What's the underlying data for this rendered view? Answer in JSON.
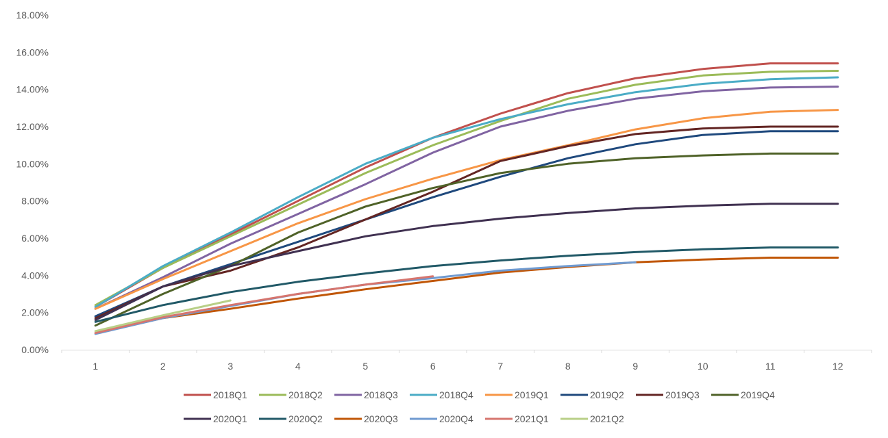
{
  "chart_data": {
    "type": "line",
    "title": "",
    "xlabel": "",
    "ylabel": "",
    "x": [
      1,
      2,
      3,
      4,
      5,
      6,
      7,
      8,
      9,
      10,
      11,
      12
    ],
    "x_tick_labels": [
      "1",
      "2",
      "3",
      "4",
      "5",
      "6",
      "7",
      "8",
      "9",
      "10",
      "11",
      "12"
    ],
    "ylim": [
      0,
      18
    ],
    "y_ticks": [
      0,
      2,
      4,
      6,
      8,
      10,
      12,
      14,
      16,
      18
    ],
    "y_tick_labels": [
      "0.00%",
      "2.00%",
      "4.00%",
      "6.00%",
      "8.00%",
      "10.00%",
      "12.00%",
      "14.00%",
      "16.00%",
      "18.00%"
    ],
    "y_unit": "%",
    "grid": "off",
    "legend_position": "bottom",
    "series": [
      {
        "name": "2018Q1",
        "color": "#C0504D",
        "values": [
          2.3,
          4.4,
          6.2,
          8.0,
          9.8,
          11.4,
          12.7,
          13.8,
          14.6,
          15.1,
          15.4,
          15.4
        ]
      },
      {
        "name": "2018Q2",
        "color": "#9BBB59",
        "values": [
          2.4,
          4.4,
          6.1,
          7.8,
          9.5,
          11.0,
          12.3,
          13.5,
          14.25,
          14.75,
          14.95,
          15.0
        ]
      },
      {
        "name": "2018Q3",
        "color": "#8064A2",
        "values": [
          2.2,
          3.9,
          5.7,
          7.3,
          8.9,
          10.6,
          12.0,
          12.85,
          13.5,
          13.9,
          14.1,
          14.15
        ]
      },
      {
        "name": "2018Q4",
        "color": "#4BACC6",
        "values": [
          2.3,
          4.5,
          6.3,
          8.2,
          10.0,
          11.4,
          12.4,
          13.2,
          13.85,
          14.3,
          14.55,
          14.65
        ]
      },
      {
        "name": "2019Q1",
        "color": "#F79646",
        "values": [
          2.2,
          3.8,
          5.3,
          6.8,
          8.1,
          9.2,
          10.2,
          11.0,
          11.85,
          12.45,
          12.8,
          12.9
        ]
      },
      {
        "name": "2019Q2",
        "color": "#1F497D",
        "values": [
          1.8,
          3.4,
          4.6,
          5.8,
          7.0,
          8.2,
          9.3,
          10.3,
          11.05,
          11.55,
          11.75,
          11.75
        ]
      },
      {
        "name": "2019Q3",
        "color": "#632523",
        "values": [
          1.7,
          3.4,
          4.25,
          5.5,
          7.0,
          8.5,
          10.15,
          10.95,
          11.6,
          11.9,
          12.0,
          12.0
        ]
      },
      {
        "name": "2019Q4",
        "color": "#4F6228",
        "values": [
          1.3,
          3.0,
          4.5,
          6.3,
          7.7,
          8.7,
          9.5,
          10.0,
          10.3,
          10.45,
          10.55,
          10.55
        ]
      },
      {
        "name": "2020Q1",
        "color": "#403151",
        "values": [
          1.6,
          3.4,
          4.5,
          5.3,
          6.1,
          6.65,
          7.05,
          7.35,
          7.6,
          7.75,
          7.85,
          7.85
        ]
      },
      {
        "name": "2020Q2",
        "color": "#215967",
        "values": [
          1.5,
          2.4,
          3.1,
          3.65,
          4.1,
          4.5,
          4.8,
          5.05,
          5.25,
          5.4,
          5.5,
          5.5
        ]
      },
      {
        "name": "2020Q3",
        "color": "#C05606",
        "values": [
          0.9,
          1.7,
          2.2,
          2.75,
          3.25,
          3.7,
          4.15,
          4.45,
          4.7,
          4.85,
          4.95,
          4.95
        ]
      },
      {
        "name": "2020Q4",
        "color": "#6F9AD0",
        "values": [
          0.85,
          1.7,
          2.35,
          3.0,
          3.5,
          3.85,
          4.25,
          4.5,
          4.7,
          null,
          null,
          null
        ]
      },
      {
        "name": "2021Q1",
        "color": "#D6756E",
        "values": [
          0.9,
          1.75,
          2.4,
          3.0,
          3.5,
          3.95,
          null,
          null,
          null,
          null,
          null,
          null
        ]
      },
      {
        "name": "2021Q2",
        "color": "#B8CF87",
        "values": [
          1.0,
          1.85,
          2.65,
          null,
          null,
          null,
          null,
          null,
          null,
          null,
          null,
          null
        ]
      }
    ]
  }
}
